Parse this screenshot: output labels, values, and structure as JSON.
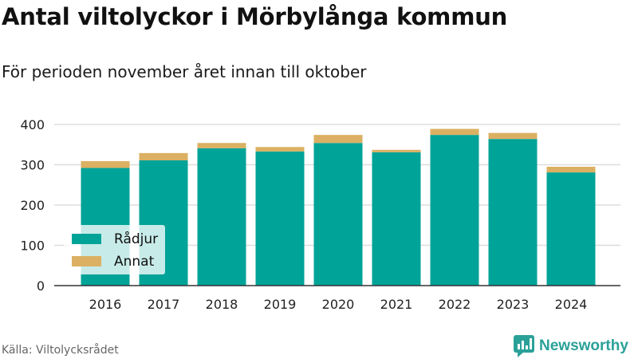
{
  "title": "Antal viltolyckor i Mörbylånga kommun",
  "subtitle": "För perioden november året innan till oktober",
  "source": "Källa: Viltolycksrådet",
  "brand": {
    "name": "Newsworthy",
    "logo_icon": "newsworthy-logo-icon"
  },
  "colors": {
    "radjur": "#00a398",
    "annat": "#dbb062",
    "grid": "#dddddd"
  },
  "chart_data": {
    "type": "bar",
    "stacked": true,
    "categories": [
      "2016",
      "2017",
      "2018",
      "2019",
      "2020",
      "2021",
      "2022",
      "2023",
      "2024"
    ],
    "series": [
      {
        "name": "Rådjur",
        "values": [
          292,
          311,
          341,
          333,
          354,
          331,
          374,
          364,
          281
        ]
      },
      {
        "name": "Annat",
        "values": [
          17,
          18,
          13,
          11,
          20,
          6,
          15,
          15,
          14
        ]
      }
    ],
    "title": "Antal viltolyckor i Mörbylånga kommun",
    "xlabel": "",
    "ylabel": "",
    "ylim": [
      0,
      400
    ],
    "yticks": [
      "0",
      "100",
      "200",
      "300",
      "400"
    ],
    "grid": true,
    "legend_position": "bottom-left"
  }
}
